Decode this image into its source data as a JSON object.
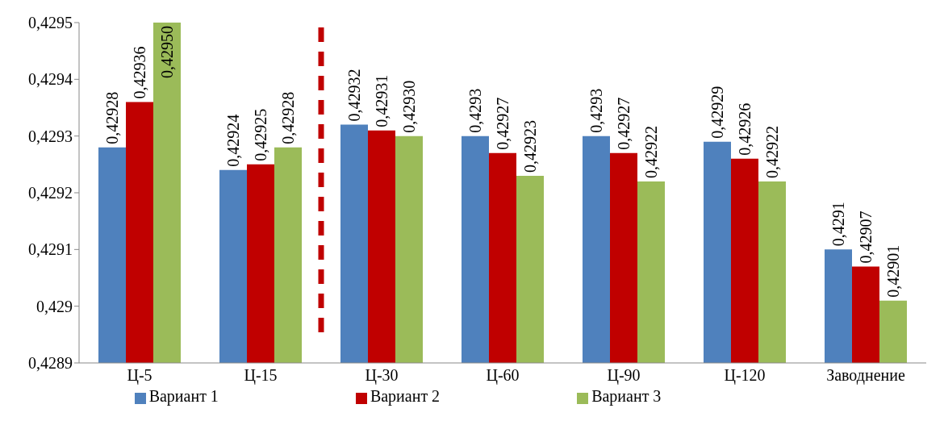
{
  "chart_data": {
    "type": "bar",
    "categories": [
      "Ц-5",
      "Ц-15",
      "Ц-30",
      "Ц-60",
      "Ц-90",
      "Ц-120",
      "Заводнение"
    ],
    "series": [
      {
        "name": "Вариант 1",
        "color": "#4f81bd",
        "values": [
          0.42928,
          0.42924,
          0.42932,
          0.4293,
          0.4293,
          0.42929,
          0.4291
        ],
        "value_labels": [
          "0,42928",
          "0,42924",
          "0,42932",
          "0,4293",
          "0,4293",
          "0,42929",
          "0,4291"
        ]
      },
      {
        "name": "Вариант 2",
        "color": "#c00000",
        "values": [
          0.42936,
          0.42925,
          0.42931,
          0.42927,
          0.42927,
          0.42926,
          0.42907
        ],
        "value_labels": [
          "0,42936",
          "0,42925",
          "0,42931",
          "0,42927",
          "0,42927",
          "0,42926",
          "0,42907"
        ]
      },
      {
        "name": "Вариант 3",
        "color": "#9bbb59",
        "values": [
          0.4295,
          0.42928,
          0.4293,
          0.42923,
          0.42922,
          0.42922,
          0.42901
        ],
        "value_labels": [
          "0,42950",
          "0,42928",
          "0,42930",
          "0,42923",
          "0,42922",
          "0,42922",
          "0,42901"
        ]
      }
    ],
    "ylim": [
      0.4289,
      0.4295
    ],
    "yticks": [
      {
        "value": 0.4289,
        "label": "0,4289"
      },
      {
        "value": 0.429,
        "label": "0,429"
      },
      {
        "value": 0.4291,
        "label": "0,4291"
      },
      {
        "value": 0.4292,
        "label": "0,4292"
      },
      {
        "value": 0.4293,
        "label": "0,4293"
      },
      {
        "value": 0.4294,
        "label": "0,4294"
      },
      {
        "value": 0.4295,
        "label": "0,4295"
      }
    ],
    "grid": false,
    "legend": "bottom"
  }
}
